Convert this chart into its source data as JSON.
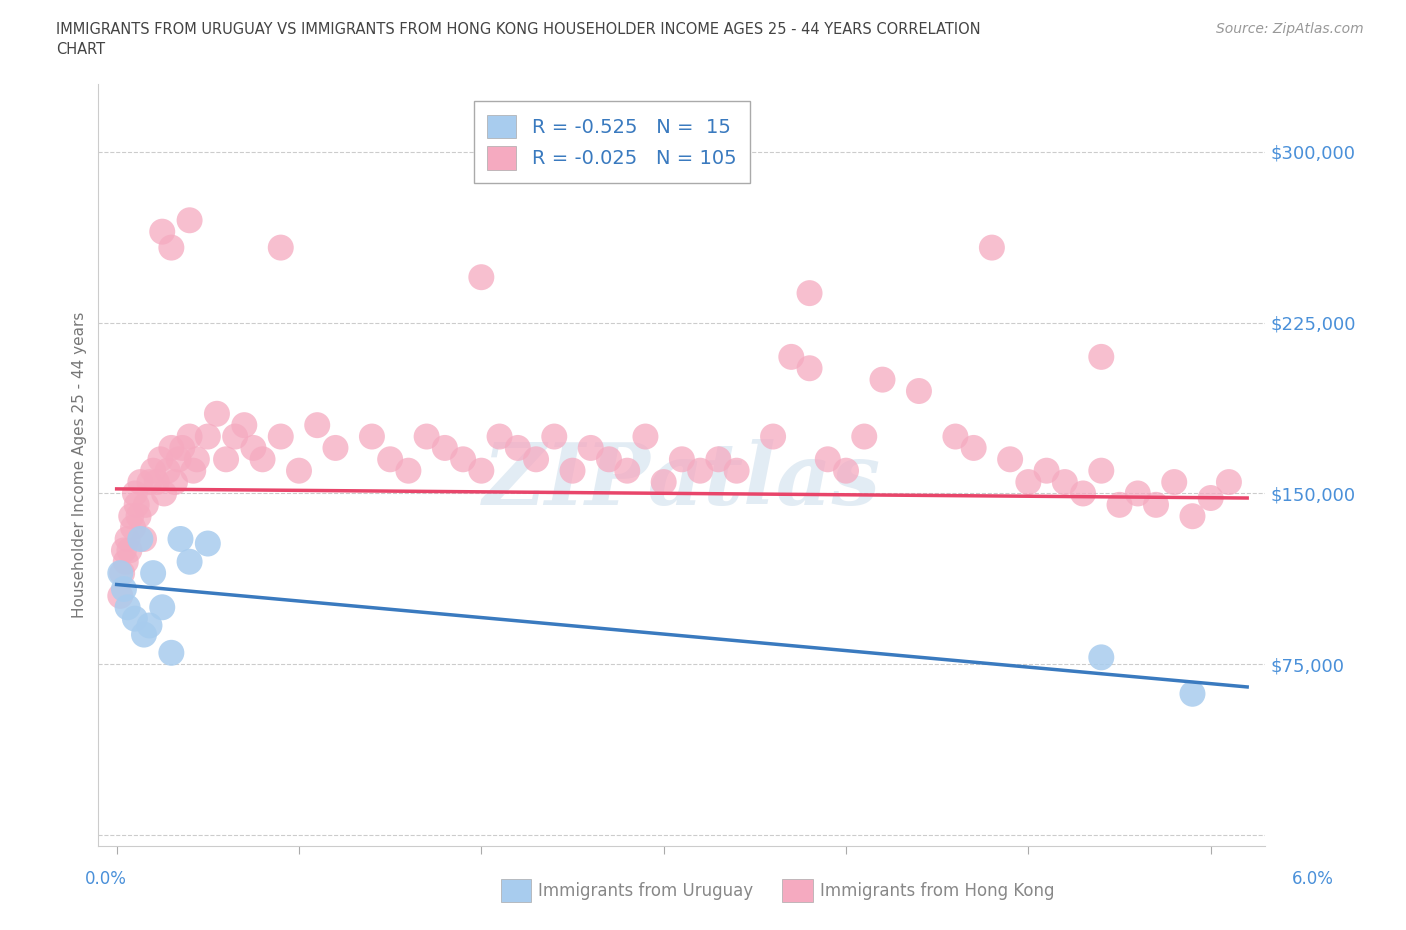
{
  "title_line1": "IMMIGRANTS FROM URUGUAY VS IMMIGRANTS FROM HONG KONG HOUSEHOLDER INCOME AGES 25 - 44 YEARS CORRELATION",
  "title_line2": "CHART",
  "source": "Source: ZipAtlas.com",
  "ylabel": "Householder Income Ages 25 - 44 years",
  "ytick_positions": [
    0,
    75000,
    150000,
    225000,
    300000
  ],
  "ytick_labels": [
    "",
    "$75,000",
    "$150,000",
    "$225,000",
    "$300,000"
  ],
  "xlim": [
    -0.001,
    0.063
  ],
  "ylim": [
    -5000,
    330000
  ],
  "watermark": "ZIPatlas",
  "uruguay_fill_color": "#a8ccee",
  "hongkong_fill_color": "#f5aac0",
  "uruguay_line_color": "#3a7abf",
  "hongkong_line_color": "#e8456a",
  "ytick_color": "#4a90d9",
  "xtick_end_color": "#4a90d9",
  "grid_color": "#cccccc",
  "title_color": "#444444",
  "source_color": "#999999",
  "ylabel_color": "#777777",
  "bottom_label_color": "#888888",
  "legend_text_color": "#3a7abf",
  "legend_border_color": "#aaaaaa",
  "uruguay_x": [
    0.0002,
    0.0004,
    0.0006,
    0.001,
    0.0013,
    0.0015,
    0.0018,
    0.002,
    0.0025,
    0.003,
    0.0035,
    0.004,
    0.005,
    0.054,
    0.059
  ],
  "uruguay_y": [
    115000,
    108000,
    100000,
    95000,
    130000,
    88000,
    92000,
    115000,
    100000,
    80000,
    130000,
    120000,
    128000,
    78000,
    62000
  ],
  "hk_x": [
    0.0002,
    0.0003,
    0.0004,
    0.0005,
    0.0006,
    0.0007,
    0.0008,
    0.0009,
    0.001,
    0.0011,
    0.0012,
    0.0013,
    0.0015,
    0.0016,
    0.0018,
    0.002,
    0.0022,
    0.0024,
    0.0026,
    0.0028,
    0.003,
    0.0032,
    0.0034,
    0.0036,
    0.004,
    0.0042,
    0.0044,
    0.005,
    0.0055,
    0.006,
    0.0065,
    0.007,
    0.0075,
    0.008,
    0.009,
    0.01,
    0.011,
    0.012,
    0.014,
    0.015,
    0.016,
    0.017,
    0.018,
    0.019,
    0.02,
    0.021,
    0.022,
    0.023,
    0.024,
    0.025,
    0.026,
    0.027,
    0.028,
    0.029,
    0.03,
    0.031,
    0.032,
    0.033,
    0.034,
    0.036,
    0.037,
    0.038,
    0.039,
    0.04,
    0.041,
    0.042,
    0.044,
    0.046,
    0.047,
    0.049,
    0.05,
    0.051,
    0.052,
    0.053,
    0.054,
    0.055,
    0.056,
    0.057,
    0.058,
    0.059,
    0.06,
    0.061
  ],
  "hk_y": [
    105000,
    115000,
    125000,
    120000,
    130000,
    125000,
    140000,
    135000,
    150000,
    145000,
    140000,
    155000,
    130000,
    145000,
    155000,
    160000,
    155000,
    165000,
    150000,
    160000,
    170000,
    155000,
    165000,
    170000,
    175000,
    160000,
    165000,
    175000,
    185000,
    165000,
    175000,
    180000,
    170000,
    165000,
    175000,
    160000,
    180000,
    170000,
    175000,
    165000,
    160000,
    175000,
    170000,
    165000,
    160000,
    175000,
    170000,
    165000,
    175000,
    160000,
    170000,
    165000,
    160000,
    175000,
    155000,
    165000,
    160000,
    165000,
    160000,
    175000,
    210000,
    205000,
    165000,
    160000,
    175000,
    200000,
    195000,
    175000,
    170000,
    165000,
    155000,
    160000,
    155000,
    150000,
    160000,
    145000,
    150000,
    145000,
    155000,
    140000,
    148000,
    155000
  ],
  "hk_x_high": [
    0.0025,
    0.003,
    0.004,
    0.009,
    0.02,
    0.038,
    0.048,
    0.054
  ],
  "hk_y_high": [
    265000,
    258000,
    270000,
    258000,
    245000,
    238000,
    258000,
    210000
  ],
  "legend_label_uruguay": "Immigrants from Uruguay",
  "legend_label_hongkong": "Immigrants from Hong Kong"
}
